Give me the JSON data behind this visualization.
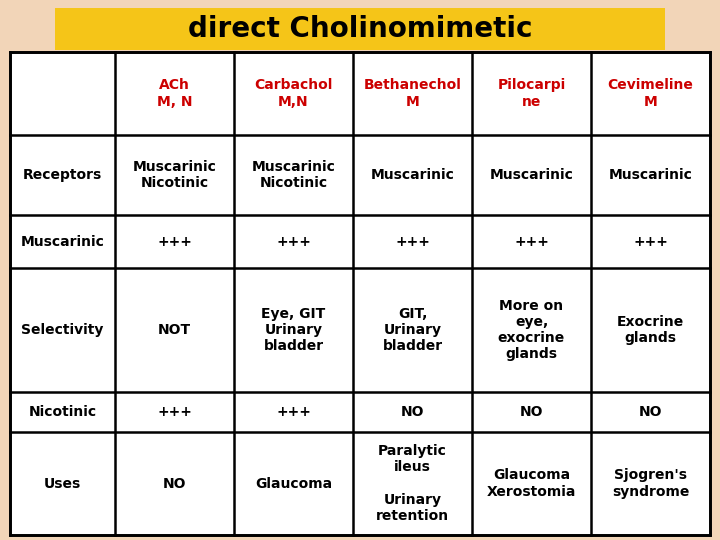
{
  "title": "direct Cholinomimetic",
  "title_bg": "#F5C518",
  "title_color": "#000000",
  "title_fontsize": 20,
  "outer_bg": "#F2D5B8",
  "header_color": "#CC0000",
  "body_color": "#000000",
  "header_row": [
    "ACh\nM, N",
    "Carbachol\nM,N",
    "Bethanechol\nM",
    "Pilocarpi\nne",
    "Cevimeline\nM"
  ],
  "row_labels": [
    "Receptors",
    "Muscarinic",
    "Selectivity",
    "Nicotinic",
    "Uses"
  ],
  "cell_data": [
    [
      "Muscarinic\nNicotinic",
      "Muscarinic\nNicotinic",
      "Muscarinic",
      "Muscarinic",
      "Muscarinic"
    ],
    [
      "+++",
      "+++",
      "+++",
      "+++",
      "+++"
    ],
    [
      "NOT",
      "Eye, GIT\nUrinary\nbladder",
      "GIT,\nUrinary\nbladder",
      "More on\neye,\nexocrine\nglands",
      "Exocrine\nglands"
    ],
    [
      "+++",
      "+++",
      "NO",
      "NO",
      "NO"
    ],
    [
      "NO",
      "Glaucoma",
      "Paralytic\nileus\n\nUrinary\nretention",
      "Glaucoma\nXerostomia",
      "Sjogren's\nsyndrome"
    ]
  ],
  "header_fontsize": 10,
  "cell_fontsize": 10,
  "label_fontsize": 10
}
